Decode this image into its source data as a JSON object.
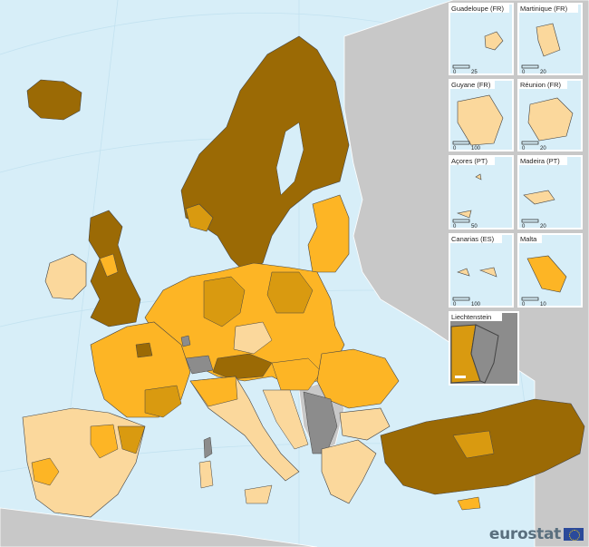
{
  "colors": {
    "sea": "#d7eef8",
    "non_eu": "#c8c8c8",
    "no_data": "#8c8c8c",
    "class_light": "#fbd89c",
    "class_mid": "#fdb525",
    "class_dark_mid": "#d99a10",
    "class_dark": "#9b6a05",
    "border": "#444444"
  },
  "insets": [
    {
      "id": "guadeloupe",
      "label": "Guadeloupe (FR)",
      "scale_labels": [
        "0",
        "25"
      ]
    },
    {
      "id": "martinique",
      "label": "Martinique (FR)",
      "scale_labels": [
        "0",
        "20"
      ]
    },
    {
      "id": "guyane",
      "label": "Guyane (FR)",
      "scale_labels": [
        "0",
        "100"
      ]
    },
    {
      "id": "reunion",
      "label": "Réunion (FR)",
      "scale_labels": [
        "0",
        "20"
      ]
    },
    {
      "id": "acores",
      "label": "Açores (PT)",
      "scale_labels": [
        "0",
        "50"
      ]
    },
    {
      "id": "madeira",
      "label": "Madeira (PT)",
      "scale_labels": [
        "0",
        "20"
      ]
    },
    {
      "id": "canarias",
      "label": "Canarias (ES)",
      "scale_labels": [
        "0",
        "100"
      ]
    },
    {
      "id": "malta",
      "label": "Malta",
      "scale_labels": [
        "0",
        "10"
      ]
    },
    {
      "id": "liechtenstein",
      "label": "Liechtenstein",
      "scale_labels": []
    }
  ],
  "brand": {
    "name": "eurostat",
    "flag_icon": "eu-flag-icon"
  }
}
